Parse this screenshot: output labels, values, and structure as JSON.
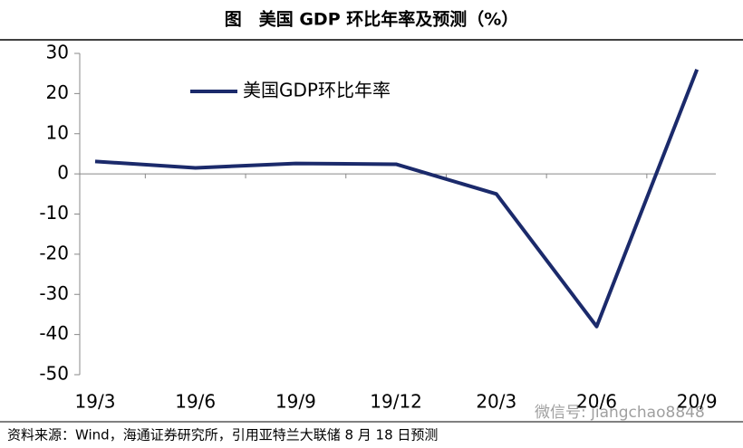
{
  "chart_data": {
    "type": "line",
    "title": "图　美国 GDP 环比年率及预测（%）",
    "categories": [
      "19/3",
      "19/6",
      "19/9",
      "19/12",
      "20/3",
      "20/6",
      "20/9"
    ],
    "series": [
      {
        "name": "美国GDP环比年率",
        "color": "#1b2a6b",
        "values": [
          3.1,
          1.5,
          2.6,
          2.4,
          -5.0,
          -38.0,
          26.0
        ]
      }
    ],
    "ylim": [
      -50,
      30
    ],
    "yticks": [
      -50,
      -40,
      -30,
      -20,
      -10,
      0,
      10,
      20,
      30
    ],
    "source": "资料来源：Wind，海通证券研究所，引用亚特兰大联储 8 月 18 日预测",
    "watermark": "微信号: jiangchao8848"
  }
}
